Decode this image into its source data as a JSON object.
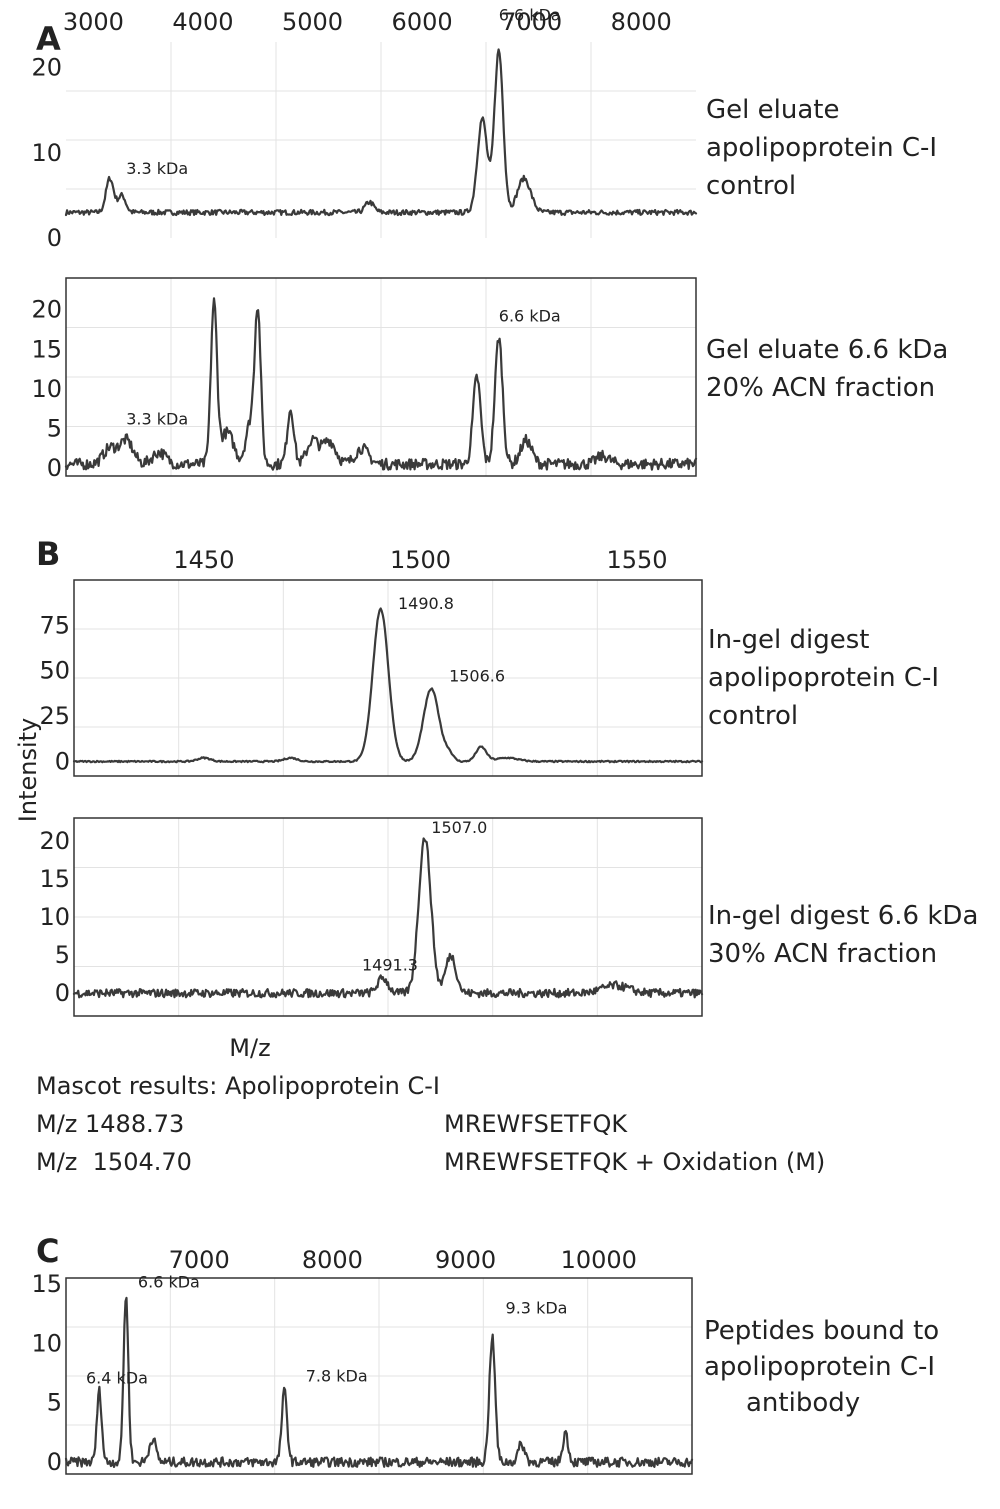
{
  "axis_labels": {
    "y": "Intensity",
    "x": "M/z"
  },
  "mascot": {
    "title": "Mascot results: Apolipoprotein C-I",
    "rows": [
      {
        "mz": "M/z 1488.73",
        "sequence": "MREWFSETFQK"
      },
      {
        "mz": "M/z  1504.70",
        "sequence": "MREWFSETFQK + Oxidation (M)"
      }
    ]
  },
  "colors": {
    "trace": "#3a3a3a",
    "frame": "#333333",
    "grid": "#e3e3e3"
  },
  "chart_data": [
    {
      "type": "line",
      "panel": "A",
      "xlim": [
        2750,
        8500
      ],
      "ylim": [
        0,
        23
      ],
      "xticks": [
        3000,
        4000,
        5000,
        6000,
        7000,
        8000
      ],
      "yticks": [
        0,
        10,
        20
      ],
      "framed": false,
      "grid": true,
      "noise": 0.3,
      "baseline": 3,
      "peak_labels": [
        {
          "text": "3.3 kDa",
          "x": 3300,
          "y": 7.5
        },
        {
          "text": "6.6 kDa",
          "x": 6700,
          "y": 25.5
        }
      ],
      "series": [
        {
          "peaks": [
            [
              3150,
              4,
              35
            ],
            [
              3260,
              2,
              35
            ],
            [
              5520,
              1.2,
              40
            ],
            [
              6550,
              11,
              45
            ],
            [
              6700,
              19,
              40
            ],
            [
              6930,
              4,
              60
            ]
          ]
        }
      ],
      "side_text": [
        "Gel eluate",
        "apolipoprotein C-I",
        "control"
      ]
    },
    {
      "type": "line",
      "panel": "A",
      "xlim": [
        2750,
        8500
      ],
      "ylim": [
        -1,
        24
      ],
      "xticks": [
        3000,
        4000,
        5000,
        6000,
        7000,
        8000
      ],
      "yticks": [
        0,
        5,
        10,
        15,
        20
      ],
      "framed": true,
      "grid": true,
      "noise": 0.7,
      "baseline": 0.5,
      "peak_labels": [
        {
          "text": "3.3 kDa",
          "x": 3300,
          "y": 5.5
        },
        {
          "text": "6.6 kDa",
          "x": 6700,
          "y": 18.5
        }
      ],
      "series": [
        {
          "peaks": [
            [
              3150,
              2,
              60
            ],
            [
              3300,
              3,
              60
            ],
            [
              3600,
              1.5,
              60
            ],
            [
              4100,
              20,
              28
            ],
            [
              4220,
              4,
              60
            ],
            [
              4500,
              19,
              28
            ],
            [
              4430,
              5,
              40
            ],
            [
              4800,
              7,
              30
            ],
            [
              5000,
              3,
              50
            ],
            [
              5150,
              3,
              60
            ],
            [
              5450,
              2,
              60
            ],
            [
              6500,
              11,
              35
            ],
            [
              6700,
              16,
              35
            ],
            [
              6950,
              3,
              50
            ],
            [
              7650,
              1,
              60
            ]
          ]
        }
      ],
      "side_text": [
        "Gel eluate 6.6 kDa",
        "20% ACN fraction"
      ]
    },
    {
      "type": "line",
      "panel": "B",
      "xlim": [
        1420,
        1565
      ],
      "ylim": [
        -8,
        100
      ],
      "xticks": [
        1450,
        1500,
        1550
      ],
      "yticks": [
        0,
        25,
        50,
        75
      ],
      "framed": true,
      "grid": true,
      "noise": 0.4,
      "baseline": 0,
      "peak_labels": [
        {
          "text": "1490.8",
          "x": 1494.8,
          "y": 84
        },
        {
          "text": "1506.6",
          "x": 1506.6,
          "y": 44
        }
      ],
      "series": [
        {
          "peaks": [
            [
              1450,
              2,
              1.5
            ],
            [
              1470,
              2,
              1.5
            ],
            [
              1490.8,
              84,
              1.8
            ],
            [
              1502.5,
              40,
              1.8
            ],
            [
              1506.6,
              4,
              1.0
            ],
            [
              1514,
              8,
              1.2
            ],
            [
              1520,
              2,
              2.5
            ]
          ]
        }
      ],
      "side_text": [
        "In-gel digest",
        "apolipoprotein C-I",
        "control"
      ]
    },
    {
      "type": "line",
      "panel": "B",
      "xlim": [
        1420,
        1565
      ],
      "ylim": [
        -3,
        23
      ],
      "xticks": [
        1450,
        1500,
        1550
      ],
      "yticks": [
        0,
        5,
        10,
        15,
        20
      ],
      "framed": true,
      "grid": true,
      "noise": 0.55,
      "baseline": 0,
      "peak_labels": [
        {
          "text": "1507.0",
          "x": 1502.5,
          "y": 21
        },
        {
          "text": "1491.3",
          "x": 1486.5,
          "y": 3
        }
      ],
      "series": [
        {
          "peaks": [
            [
              1491.3,
              2,
              1.2
            ],
            [
              1501,
              20.5,
              1.4
            ],
            [
              1507,
              5,
              1.2
            ],
            [
              1545,
              1,
              3
            ]
          ]
        }
      ],
      "side_text": [
        "In-gel digest 6.6 kDa",
        "30% ACN fraction"
      ]
    },
    {
      "type": "line",
      "panel": "C",
      "xlim": [
        6000,
        10700
      ],
      "ylim": [
        -1,
        15.5
      ],
      "xticks": [
        7000,
        8000,
        9000,
        10000
      ],
      "yticks": [
        0,
        5,
        10,
        15
      ],
      "framed": true,
      "grid": true,
      "noise": 0.4,
      "baseline": 0,
      "peak_labels": [
        {
          "text": "6.4 kDa",
          "x": 6150,
          "y": 6.6
        },
        {
          "text": "6.6 kDa",
          "x": 6540,
          "y": 14.7
        },
        {
          "text": "7.8 kDa",
          "x": 7800,
          "y": 6.8
        },
        {
          "text": "9.3 kDa",
          "x": 9300,
          "y": 12.5
        }
      ],
      "series": [
        {
          "peaks": [
            [
              6250,
              6,
              18
            ],
            [
              6450,
              14,
              18
            ],
            [
              6650,
              2,
              25
            ],
            [
              7640,
              6,
              20
            ],
            [
              9200,
              10.5,
              22
            ],
            [
              9420,
              1.5,
              25
            ],
            [
              9750,
              2.5,
              20
            ]
          ]
        }
      ],
      "side_text": [
        "Peptides bound to",
        "apolipoprotein C-I",
        "antibody"
      ]
    }
  ]
}
